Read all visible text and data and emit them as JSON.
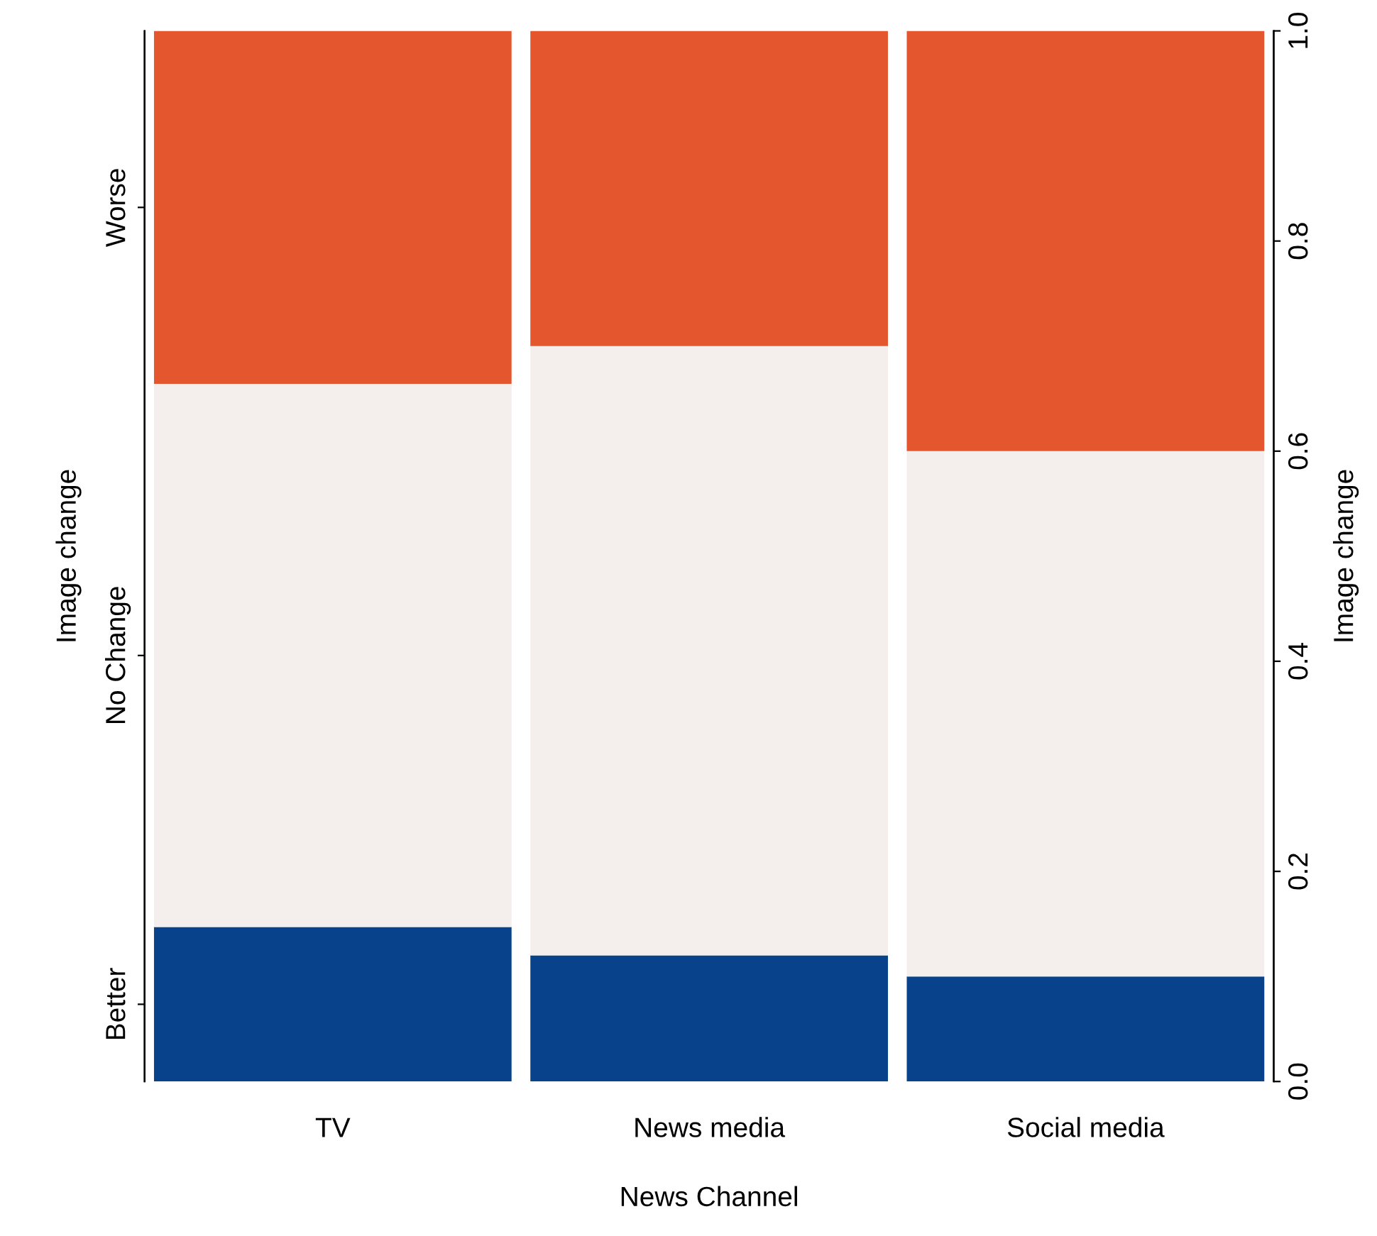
{
  "chart_data": {
    "type": "bar",
    "stacked": true,
    "categories": [
      "TV",
      "News media",
      "Social media"
    ],
    "series": [
      {
        "name": "Better",
        "color": "#08428a",
        "values": [
          0.147,
          0.12,
          0.1
        ],
        "axis": "y2"
      },
      {
        "name": "No Change",
        "color": "#f4efed",
        "values": [
          0.517,
          0.58,
          0.5
        ],
        "axis": "y2"
      },
      {
        "name": "Worse",
        "color": "#e4572e",
        "values": [
          0.336,
          0.3,
          0.4
        ],
        "axis": "y2"
      }
    ],
    "xlabel": "News Channel",
    "ylabel": "Image change",
    "y2label": "Image change",
    "y2lim": [
      0,
      1
    ],
    "y2ticks": [
      {
        "value": 0,
        "label": "0.0"
      },
      {
        "value": 0.2,
        "label": "0.2"
      },
      {
        "value": 0.4,
        "label": "0.4"
      },
      {
        "value": 0.6,
        "label": "0.6"
      },
      {
        "value": 0.8,
        "label": "0.8"
      },
      {
        "value": 1,
        "label": "1.0"
      }
    ],
    "grid": false,
    "legend": false
  }
}
